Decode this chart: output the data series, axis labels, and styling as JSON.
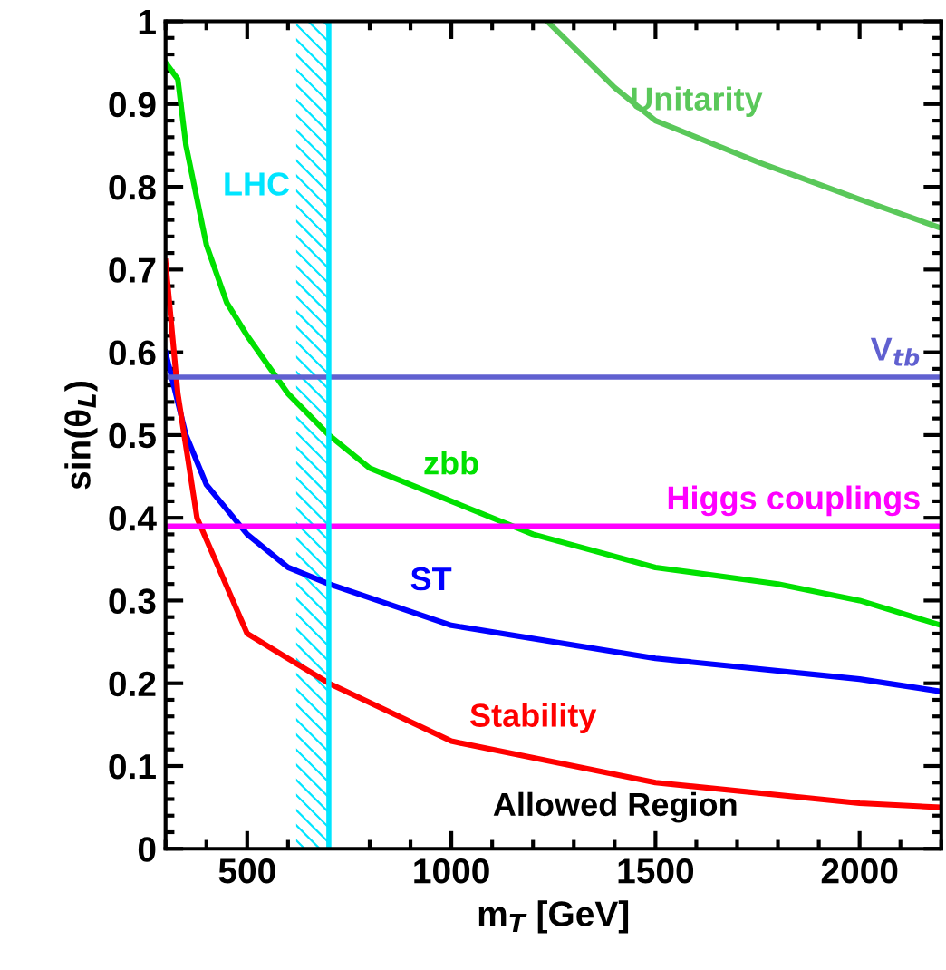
{
  "chart_data": {
    "type": "line",
    "xlabel": "m$_{T}$ [GeV]",
    "ylabel": "sin(θ$_{L}$)",
    "xlim": [
      300,
      2200
    ],
    "ylim": [
      0,
      1
    ],
    "xticks": [
      500,
      1000,
      1500,
      2000
    ],
    "yticks": [
      0,
      0.1,
      0.2,
      0.3,
      0.4,
      0.5,
      0.6,
      0.7,
      0.8,
      0.9,
      1
    ],
    "grid": false,
    "legend": false,
    "marker": "none",
    "line_style": "solid",
    "series": [
      {
        "color": "#5ac85a",
        "x": [
          1235,
          1400,
          1500,
          1750,
          2000,
          2200
        ],
        "values": [
          1.0,
          0.92,
          0.88,
          0.83,
          0.785,
          0.75
        ]
      },
      {
        "color": "#00e000",
        "x": [
          300,
          330,
          350,
          400,
          450,
          500,
          600,
          700,
          800,
          1000,
          1200,
          1500,
          1800,
          2000,
          2200
        ],
        "values": [
          0.95,
          0.93,
          0.85,
          0.73,
          0.66,
          0.62,
          0.55,
          0.5,
          0.46,
          0.42,
          0.38,
          0.34,
          0.32,
          0.3,
          0.27
        ]
      },
      {
        "color": "#0000ff",
        "x": [
          300,
          350,
          400,
          500,
          600,
          700,
          1000,
          1500,
          2000,
          2200
        ],
        "values": [
          0.6,
          0.5,
          0.44,
          0.38,
          0.34,
          0.32,
          0.27,
          0.23,
          0.205,
          0.19
        ]
      },
      {
        "color": "#ff0000",
        "x": [
          300,
          330,
          377,
          500,
          600,
          700,
          1000,
          1500,
          2000,
          2200
        ],
        "values": [
          0.71,
          0.55,
          0.4,
          0.26,
          0.23,
          0.2,
          0.13,
          0.08,
          0.055,
          0.05
        ]
      }
    ],
    "ref_lines": [
      {
        "axis": "y",
        "value": 0.57,
        "label": "V$_{tb}$",
        "color": "#6060d0"
      },
      {
        "axis": "y",
        "value": 0.39,
        "label": "Higgs couplings",
        "color": "#ff00ff"
      },
      {
        "axis": "x",
        "value": 700,
        "color": "#00e5ff"
      }
    ],
    "bands": [
      {
        "axis": "x",
        "from": 620,
        "to": 700,
        "label": "LHC",
        "color": "#00e5ff"
      }
    ],
    "annotations": [
      {
        "text": "Unitarity",
        "x": 1600,
        "y": 0.86
      },
      {
        "text": "zbb",
        "x": 1000,
        "y": 0.42
      },
      {
        "text": "ST",
        "x": 950,
        "y": 0.28
      },
      {
        "text": "Stability",
        "x": 1200,
        "y": 0.115
      },
      "Allowed Region"
    ]
  }
}
